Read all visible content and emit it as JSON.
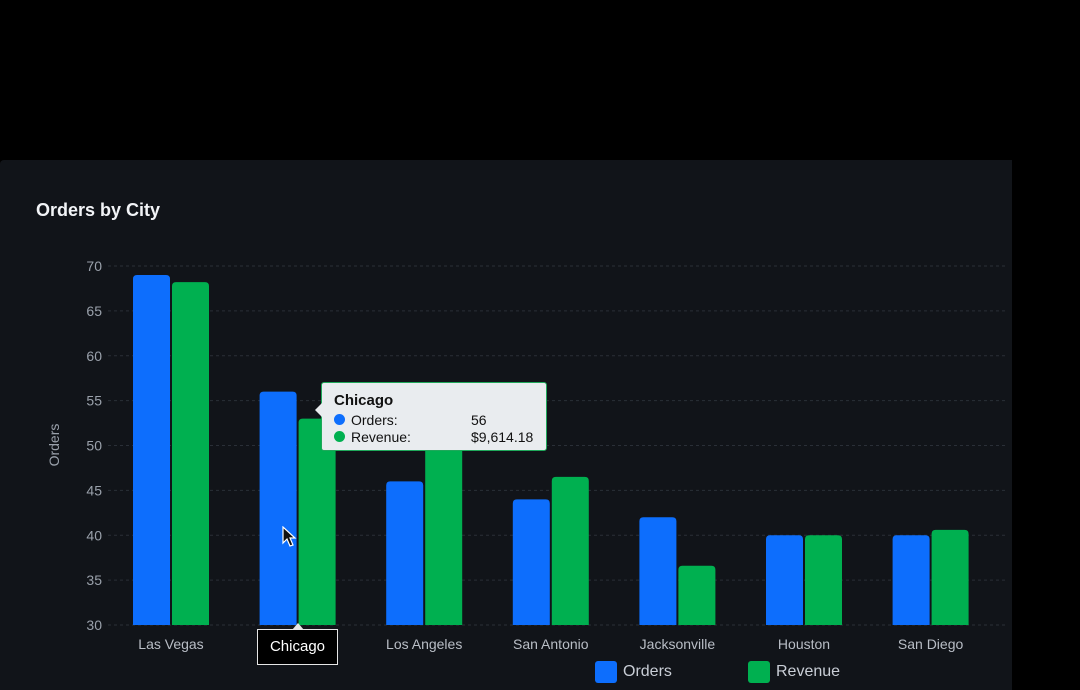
{
  "chart_data": {
    "type": "bar",
    "title": "Orders by City",
    "ylabel": "Orders",
    "xlabel": "",
    "ylim": [
      30,
      70
    ],
    "yticks": [
      30,
      35,
      40,
      45,
      50,
      55,
      60,
      65,
      70
    ],
    "grid": true,
    "legend_position": "bottom-right",
    "categories": [
      "Las Vegas",
      "Chicago",
      "Los Angeles",
      "San Antonio",
      "Jacksonville",
      "Houston",
      "San Diego"
    ],
    "series": [
      {
        "name": "Orders",
        "color": "#0d6efd",
        "values": [
          69,
          56,
          46,
          44,
          42,
          40,
          40
        ]
      },
      {
        "name": "Revenue",
        "color": "#00b050",
        "values": [
          68.2,
          53,
          50,
          46.5,
          36.6,
          40,
          40.6
        ]
      }
    ]
  },
  "tooltip": {
    "title": "Chicago",
    "rows": [
      {
        "label": "Orders:",
        "value": "56",
        "color": "#0d6efd"
      },
      {
        "label": "Revenue:",
        "value": "$9,614.18",
        "color": "#00b050"
      }
    ]
  },
  "hover_category": "Chicago"
}
